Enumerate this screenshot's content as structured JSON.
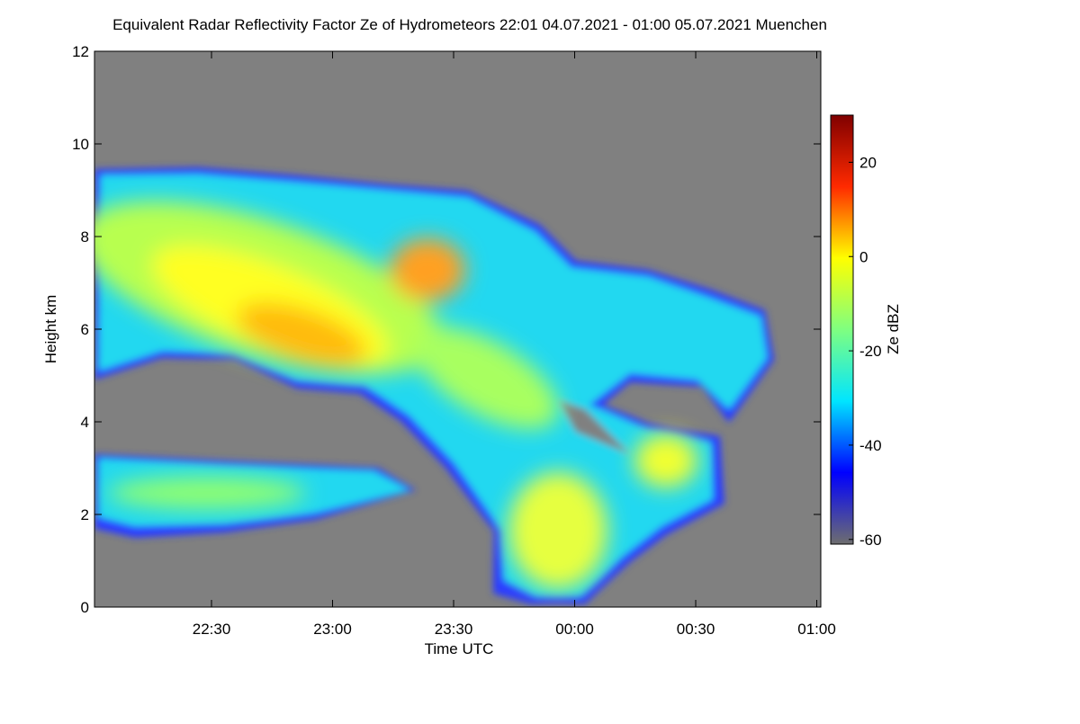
{
  "chart_data": {
    "type": "heatmap",
    "title": "Equivalent Radar Reflectivity Factor Ze of Hydrometeors   22:01 04.07.2021 - 01:00 05.07.2021 Muenchen",
    "x_label": "Time UTC",
    "y_label": "Height km",
    "xlim": [
      1,
      181
    ],
    "xticks": [
      {
        "value": 30,
        "label": "22:30"
      },
      {
        "value": 60,
        "label": "23:00"
      },
      {
        "value": 90,
        "label": "23:30"
      },
      {
        "value": 120,
        "label": "00:00"
      },
      {
        "value": 150,
        "label": "00:30"
      },
      {
        "value": 180,
        "label": "01:00"
      }
    ],
    "ylim": [
      0,
      12
    ],
    "yticks": [
      0,
      2,
      4,
      6,
      8,
      10,
      12
    ],
    "background_color": "#808080",
    "colorbar": {
      "label": "Ze dBZ",
      "lim": [
        -61,
        30
      ],
      "ticks": [
        -60,
        -40,
        -20,
        0,
        20
      ],
      "colors": [
        "#6e6e6e",
        "#0000ff",
        "#00e5ff",
        "#7fff80",
        "#ffff00",
        "#ff2a00",
        "#800000"
      ]
    }
  }
}
